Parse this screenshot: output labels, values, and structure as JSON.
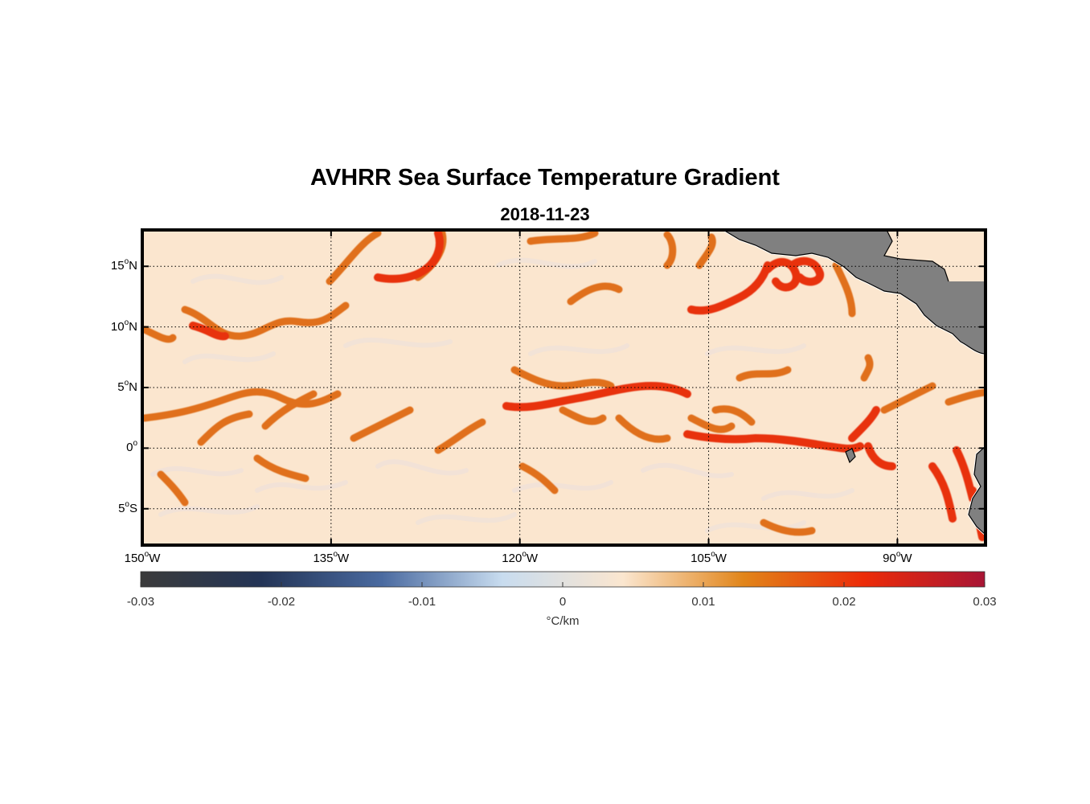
{
  "title": "AVHRR Sea Surface Temperature Gradient",
  "subtitle": "2018-11-23",
  "map": {
    "extent": {
      "lon": [
        -150,
        -83
      ],
      "lat": [
        -8,
        18
      ]
    },
    "lat_ticks": [
      {
        "value": 15,
        "num": "15",
        "hemi": "N"
      },
      {
        "value": 10,
        "num": "10",
        "hemi": "N"
      },
      {
        "value": 5,
        "num": "5",
        "hemi": "N"
      },
      {
        "value": 0,
        "num": "0",
        "hemi": ""
      },
      {
        "value": -5,
        "num": "5",
        "hemi": "S"
      }
    ],
    "lon_ticks": [
      {
        "value": -150,
        "num": "150",
        "hemi": "W"
      },
      {
        "value": -135,
        "num": "135",
        "hemi": "W"
      },
      {
        "value": -120,
        "num": "120",
        "hemi": "W"
      },
      {
        "value": -105,
        "num": "105",
        "hemi": "W"
      },
      {
        "value": -90,
        "num": "90",
        "hemi": "W"
      }
    ],
    "degree_symbol": "o",
    "gridlines": "dotted",
    "land_color": "#808080",
    "background_color": "#fbe6cf"
  },
  "colorbar": {
    "ticks": [
      "-0.03",
      "-0.02",
      "-0.01",
      "0",
      "0.01",
      "0.02",
      "0.03"
    ],
    "range": [
      -0.03,
      0.03
    ],
    "unit_label": "°C/km",
    "colors": [
      "#3b3b3b",
      "#233456",
      "#4a6aa0",
      "#c8dcef",
      "#fbe6cf",
      "#e1851a",
      "#ec2b08",
      "#a81535"
    ]
  }
}
